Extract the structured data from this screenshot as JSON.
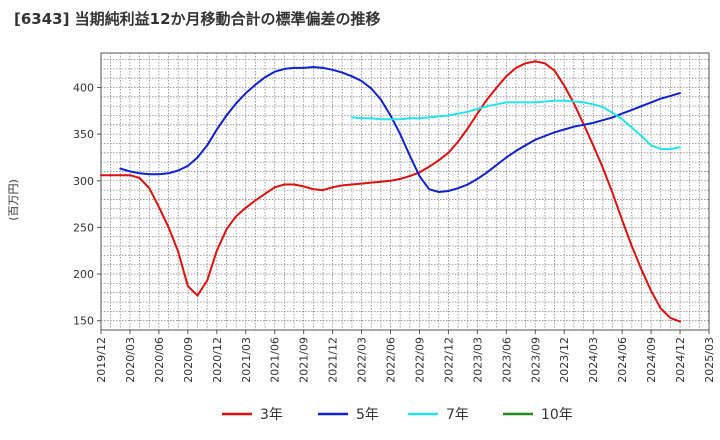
{
  "title": "[6343]  当期純利益12か月移動合計の標準偏差の推移",
  "chart_data": {
    "type": "line",
    "title": "[6343]  当期純利益12か月移動合計の標準偏差の推移",
    "ylabel": "(百万円)",
    "xlabel": "",
    "ylim": [
      140,
      437
    ],
    "yticks": [
      150,
      200,
      250,
      300,
      350,
      400
    ],
    "xlim": [
      "2019-12",
      "2025-03"
    ],
    "xticks": [
      "2019/12",
      "2020/03",
      "2020/06",
      "2020/09",
      "2020/12",
      "2021/03",
      "2021/06",
      "2021/09",
      "2021/12",
      "2022/03",
      "2022/06",
      "2022/09",
      "2022/12",
      "2023/03",
      "2023/06",
      "2023/09",
      "2023/12",
      "2024/03",
      "2024/06",
      "2024/09",
      "2024/12",
      "2025/03"
    ],
    "grid": true,
    "legend_position": "bottom",
    "series": [
      {
        "name": "3年",
        "color": "#dd1111",
        "points": [
          [
            "2019-12",
            306
          ],
          [
            "2020-01",
            306
          ],
          [
            "2020-02",
            306
          ],
          [
            "2020-03",
            306
          ],
          [
            "2020-04",
            303
          ],
          [
            "2020-05",
            292
          ],
          [
            "2020-06",
            272
          ],
          [
            "2020-07",
            250
          ],
          [
            "2020-08",
            224
          ],
          [
            "2020-09",
            187
          ],
          [
            "2020-10",
            177
          ],
          [
            "2020-11",
            193
          ],
          [
            "2020-12",
            225
          ],
          [
            "2021-01",
            248
          ],
          [
            "2021-02",
            262
          ],
          [
            "2021-03",
            271
          ],
          [
            "2021-04",
            279
          ],
          [
            "2021-05",
            286
          ],
          [
            "2021-06",
            293
          ],
          [
            "2021-07",
            296
          ],
          [
            "2021-08",
            296
          ],
          [
            "2021-09",
            294
          ],
          [
            "2021-10",
            291
          ],
          [
            "2021-11",
            290
          ],
          [
            "2021-12",
            293
          ],
          [
            "2022-01",
            295
          ],
          [
            "2022-02",
            296
          ],
          [
            "2022-03",
            297
          ],
          [
            "2022-04",
            298
          ],
          [
            "2022-05",
            299
          ],
          [
            "2022-06",
            300
          ],
          [
            "2022-07",
            302
          ],
          [
            "2022-08",
            305
          ],
          [
            "2022-09",
            309
          ],
          [
            "2022-10",
            315
          ],
          [
            "2022-11",
            322
          ],
          [
            "2022-12",
            330
          ],
          [
            "2023-01",
            342
          ],
          [
            "2023-02",
            356
          ],
          [
            "2023-03",
            372
          ],
          [
            "2023-04",
            387
          ],
          [
            "2023-05",
            400
          ],
          [
            "2023-06",
            412
          ],
          [
            "2023-07",
            421
          ],
          [
            "2023-08",
            426
          ],
          [
            "2023-09",
            428
          ],
          [
            "2023-10",
            426
          ],
          [
            "2023-11",
            418
          ],
          [
            "2023-12",
            402
          ],
          [
            "2024-01",
            383
          ],
          [
            "2024-02",
            361
          ],
          [
            "2024-03",
            338
          ],
          [
            "2024-04",
            314
          ],
          [
            "2024-05",
            287
          ],
          [
            "2024-06",
            258
          ],
          [
            "2024-07",
            230
          ],
          [
            "2024-08",
            205
          ],
          [
            "2024-09",
            182
          ],
          [
            "2024-10",
            163
          ],
          [
            "2024-11",
            153
          ],
          [
            "2024-12",
            149
          ]
        ]
      },
      {
        "name": "5年",
        "color": "#1122cc",
        "points": [
          [
            "2020-02",
            313
          ],
          [
            "2020-03",
            310
          ],
          [
            "2020-04",
            308
          ],
          [
            "2020-05",
            307
          ],
          [
            "2020-06",
            307
          ],
          [
            "2020-07",
            308
          ],
          [
            "2020-08",
            311
          ],
          [
            "2020-09",
            316
          ],
          [
            "2020-10",
            325
          ],
          [
            "2020-11",
            338
          ],
          [
            "2020-12",
            355
          ],
          [
            "2021-01",
            370
          ],
          [
            "2021-02",
            383
          ],
          [
            "2021-03",
            394
          ],
          [
            "2021-04",
            403
          ],
          [
            "2021-05",
            411
          ],
          [
            "2021-06",
            417
          ],
          [
            "2021-07",
            420
          ],
          [
            "2021-08",
            421
          ],
          [
            "2021-09",
            421
          ],
          [
            "2021-10",
            422
          ],
          [
            "2021-11",
            421
          ],
          [
            "2021-12",
            419
          ],
          [
            "2022-01",
            416
          ],
          [
            "2022-02",
            412
          ],
          [
            "2022-03",
            407
          ],
          [
            "2022-04",
            399
          ],
          [
            "2022-05",
            387
          ],
          [
            "2022-06",
            370
          ],
          [
            "2022-07",
            350
          ],
          [
            "2022-08",
            327
          ],
          [
            "2022-09",
            305
          ],
          [
            "2022-10",
            291
          ],
          [
            "2022-11",
            288
          ],
          [
            "2022-12",
            289
          ],
          [
            "2023-01",
            292
          ],
          [
            "2023-02",
            296
          ],
          [
            "2023-03",
            302
          ],
          [
            "2023-04",
            309
          ],
          [
            "2023-05",
            317
          ],
          [
            "2023-06",
            325
          ],
          [
            "2023-07",
            332
          ],
          [
            "2023-08",
            338
          ],
          [
            "2023-09",
            344
          ],
          [
            "2023-10",
            348
          ],
          [
            "2023-11",
            352
          ],
          [
            "2023-12",
            355
          ],
          [
            "2024-01",
            358
          ],
          [
            "2024-02",
            360
          ],
          [
            "2024-03",
            362
          ],
          [
            "2024-04",
            365
          ],
          [
            "2024-05",
            368
          ],
          [
            "2024-06",
            372
          ],
          [
            "2024-07",
            376
          ],
          [
            "2024-08",
            380
          ],
          [
            "2024-09",
            384
          ],
          [
            "2024-10",
            388
          ],
          [
            "2024-11",
            391
          ],
          [
            "2024-12",
            394
          ]
        ]
      },
      {
        "name": "7年",
        "color": "#22e5ee",
        "points": [
          [
            "2022-02",
            368
          ],
          [
            "2022-03",
            367
          ],
          [
            "2022-04",
            367
          ],
          [
            "2022-05",
            366
          ],
          [
            "2022-06",
            366
          ],
          [
            "2022-07",
            366
          ],
          [
            "2022-08",
            367
          ],
          [
            "2022-09",
            367
          ],
          [
            "2022-10",
            368
          ],
          [
            "2022-11",
            369
          ],
          [
            "2022-12",
            370
          ],
          [
            "2023-01",
            372
          ],
          [
            "2023-02",
            374
          ],
          [
            "2023-03",
            377
          ],
          [
            "2023-04",
            380
          ],
          [
            "2023-05",
            382
          ],
          [
            "2023-06",
            384
          ],
          [
            "2023-07",
            384
          ],
          [
            "2023-08",
            384
          ],
          [
            "2023-09",
            384
          ],
          [
            "2023-10",
            385
          ],
          [
            "2023-11",
            386
          ],
          [
            "2023-12",
            386
          ],
          [
            "2024-01",
            385
          ],
          [
            "2024-02",
            384
          ],
          [
            "2024-03",
            382
          ],
          [
            "2024-04",
            379
          ],
          [
            "2024-05",
            373
          ],
          [
            "2024-06",
            366
          ],
          [
            "2024-07",
            357
          ],
          [
            "2024-08",
            348
          ],
          [
            "2024-09",
            338
          ],
          [
            "2024-10",
            334
          ],
          [
            "2024-11",
            334
          ],
          [
            "2024-12",
            336
          ]
        ]
      },
      {
        "name": "10年",
        "color": "#228822",
        "points": []
      }
    ]
  }
}
